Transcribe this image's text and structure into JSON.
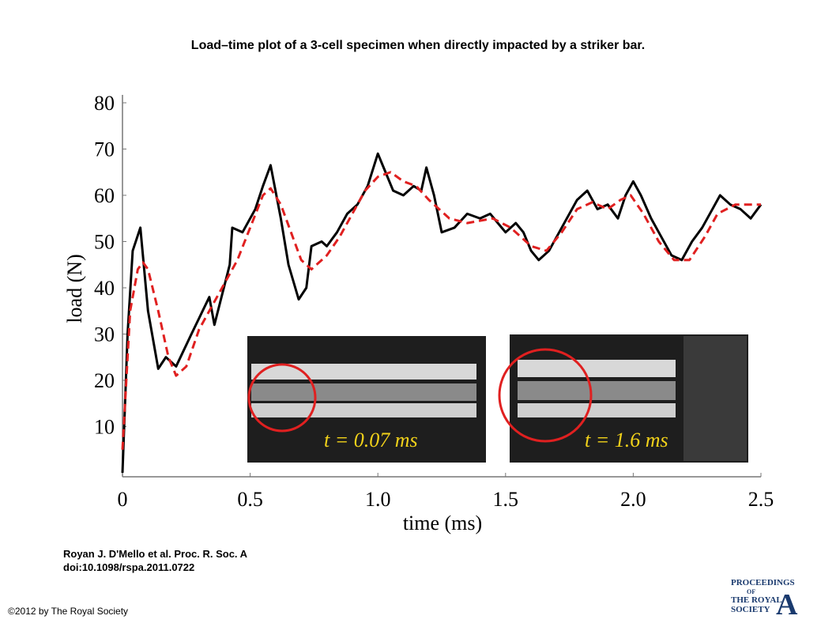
{
  "chart_data": {
    "type": "line",
    "title": "Load–time plot of a 3-cell specimen when directly impacted by a striker bar.",
    "x_label": "time (ms)",
    "y_label": "load (N)",
    "xlim": [
      0,
      2.5
    ],
    "xticks": [
      0,
      0.5,
      {
        "value": 1,
        "label": "1.0"
      },
      1.5,
      {
        "value": 2,
        "label": "2.0"
      },
      2.5
    ],
    "ylim": [
      0,
      80
    ],
    "yticks": [
      10,
      20,
      30,
      40,
      50,
      60,
      70,
      80
    ],
    "annotations": [
      "t = 0.07 ms",
      "t = 1.6 ms"
    ],
    "series": [
      {
        "color": "#000000",
        "dash": false,
        "x": [
          0,
          0.02,
          0.04,
          0.07,
          0.1,
          0.14,
          0.17,
          0.21,
          0.27,
          0.34,
          0.36,
          0.42,
          0.43,
          0.47,
          0.52,
          0.55,
          0.58,
          0.62,
          0.65,
          0.69,
          0.72,
          0.74,
          0.78,
          0.8,
          0.84,
          0.88,
          0.92,
          0.96,
          1.0,
          1.03,
          1.06,
          1.1,
          1.14,
          1.17,
          1.19,
          1.22,
          1.25,
          1.3,
          1.35,
          1.4,
          1.44,
          1.5,
          1.54,
          1.57,
          1.6,
          1.63,
          1.67,
          1.72,
          1.78,
          1.82,
          1.86,
          1.9,
          1.94,
          1.97,
          2.0,
          2.03,
          2.07,
          2.1,
          2.15,
          2.19,
          2.23,
          2.27,
          2.31,
          2.34,
          2.38,
          2.42,
          2.46,
          2.5
        ],
        "values": [
          0,
          30,
          48,
          53,
          35,
          22.5,
          25,
          23,
          30,
          38,
          32,
          45,
          53,
          52,
          57,
          62,
          66.5,
          55,
          45,
          37.5,
          40,
          49,
          50,
          49,
          52,
          56,
          58,
          62,
          69,
          65,
          61,
          60,
          62,
          61,
          66,
          60,
          52,
          53,
          56,
          55,
          56,
          52,
          54,
          52,
          48,
          46,
          48,
          53,
          59,
          61,
          57,
          58,
          55,
          60,
          63,
          60,
          55,
          52,
          47,
          46,
          50,
          53,
          57,
          60,
          58,
          57,
          55,
          58
        ]
      },
      {
        "color": "#e02020",
        "dash": true,
        "x": [
          0,
          0.03,
          0.06,
          0.08,
          0.1,
          0.14,
          0.18,
          0.21,
          0.25,
          0.3,
          0.35,
          0.4,
          0.45,
          0.5,
          0.55,
          0.58,
          0.62,
          0.66,
          0.7,
          0.74,
          0.8,
          0.85,
          0.9,
          0.95,
          1.0,
          1.05,
          1.1,
          1.15,
          1.2,
          1.28,
          1.35,
          1.45,
          1.52,
          1.6,
          1.66,
          1.72,
          1.78,
          1.84,
          1.9,
          1.95,
          1.99,
          2.04,
          2.1,
          2.16,
          2.22,
          2.28,
          2.33,
          2.4,
          2.5
        ],
        "values": [
          5,
          35,
          44,
          45.5,
          44,
          35,
          25,
          21,
          23,
          31,
          36,
          41,
          46,
          53,
          60,
          61.5,
          58,
          52,
          46,
          44,
          47,
          51,
          56,
          61,
          64,
          65,
          63,
          62,
          59,
          55,
          54,
          55,
          53,
          49,
          48,
          52,
          57,
          58.5,
          57,
          59,
          60,
          56,
          50,
          46,
          46,
          51,
          56,
          58,
          58
        ]
      }
    ]
  },
  "citation": [
    "Royan J. D'Mello et al. Proc. R. Soc. A",
    "doi:10.1098/rspa.2011.0722"
  ],
  "copyright": "©2012 by The Royal Society",
  "logo": [
    "PROCEEDINGS",
    "OF",
    "THE ROYAL",
    "SOCIETY",
    "A"
  ]
}
